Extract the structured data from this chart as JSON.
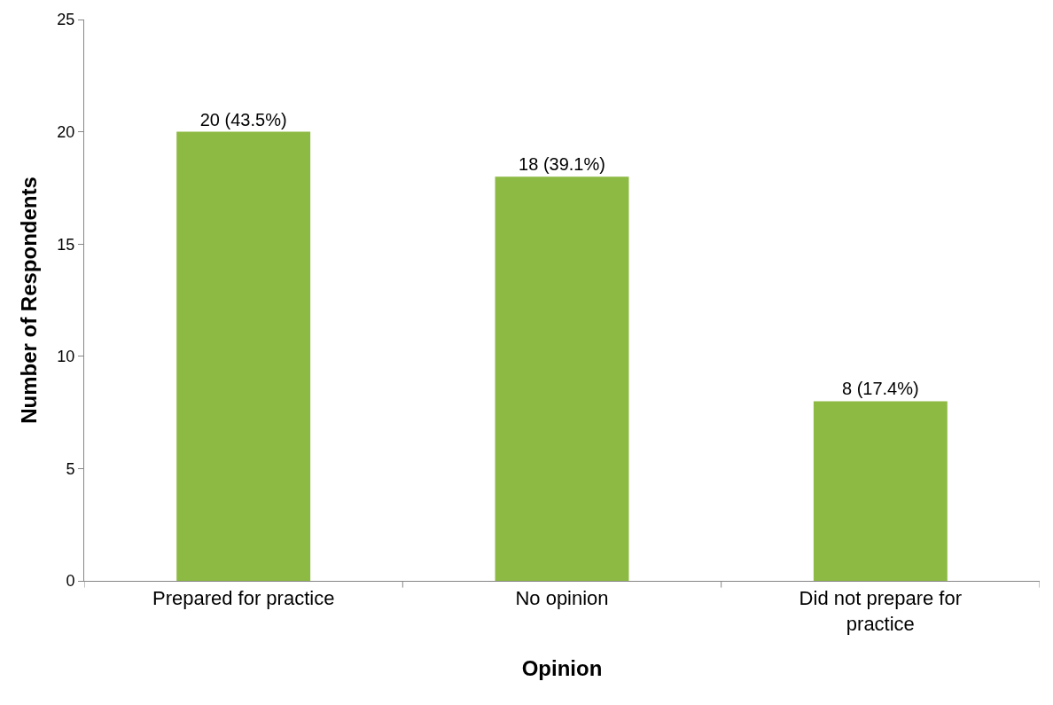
{
  "chart_data": {
    "type": "bar",
    "xlabel": "Opinion",
    "ylabel": "Number of Respondents",
    "categories": [
      "Prepared for practice",
      "No opinion",
      "Did not prepare for practice"
    ],
    "values": [
      20,
      18,
      8
    ],
    "color": "#8dba43",
    "value_labels": [
      "20 (43.5%)",
      "18 (39.1%)",
      "8 (17.4%)"
    ],
    "ylim": [
      0,
      25
    ],
    "yticks": [
      0,
      5,
      10,
      15,
      20,
      25
    ]
  }
}
